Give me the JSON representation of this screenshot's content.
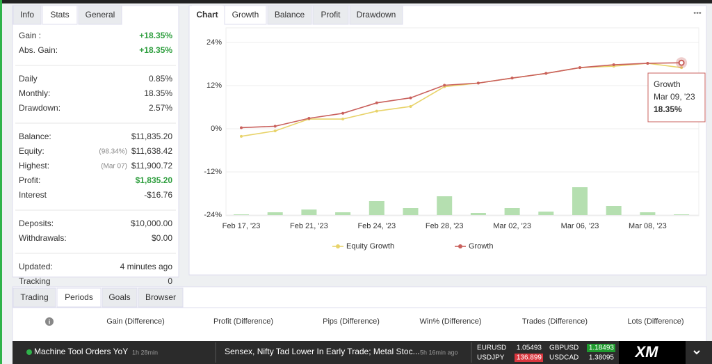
{
  "stats_panel": {
    "tabs": [
      "Info",
      "Stats",
      "General"
    ],
    "groups": [
      [
        {
          "label": "Gain :",
          "value": "+18.35%",
          "color": "#2e9e3e"
        },
        {
          "label": "Abs. Gain:",
          "value": "+18.35%",
          "color": "#2e9e3e"
        }
      ],
      [
        {
          "label": "Daily",
          "value": "0.85%"
        },
        {
          "label": "Monthly:",
          "value": "18.35%"
        },
        {
          "label": "Drawdown:",
          "value": "2.57%"
        }
      ],
      [
        {
          "label": "Balance:",
          "value": "$11,835.20"
        },
        {
          "label": "Equity:",
          "note": "(98.34%)",
          "value": "$11,638.42"
        },
        {
          "label": "Highest:",
          "note": "(Mar 07)",
          "value": "$11,900.72"
        },
        {
          "label": "Profit:",
          "value": "$1,835.20",
          "color": "#2e9e3e"
        },
        {
          "label": "Interest",
          "value": "-$16.76"
        }
      ],
      [
        {
          "label": "Deposits:",
          "value": "$10,000.00"
        },
        {
          "label": "Withdrawals:",
          "value": "$0.00"
        }
      ],
      [
        {
          "label": "Updated:",
          "value": "4 minutes ago"
        },
        {
          "label": "Tracking",
          "value": "0"
        }
      ]
    ]
  },
  "chart_panel": {
    "tabs": [
      "Chart",
      "Growth",
      "Balance",
      "Profit",
      "Drawdown"
    ],
    "menu": "•••"
  },
  "chart_data": {
    "type": "line",
    "categories": [
      "Feb 17, '23",
      null,
      "Feb 21, '23",
      null,
      "Feb 24, '23",
      null,
      "Feb 28, '23",
      null,
      "Mar 02, '23",
      null,
      "Mar 06, '23",
      null,
      "Mar 08, '23",
      null
    ],
    "series": [
      {
        "name": "Equity Growth",
        "color": "#e8d36a",
        "values": [
          -2.1,
          -0.6,
          2.7,
          2.7,
          4.9,
          6.2,
          11.7,
          12.7,
          14.1,
          15.4,
          17.0,
          17.4,
          18.2,
          17.0
        ]
      },
      {
        "name": "Growth",
        "color": "#c9605c",
        "values": [
          0.3,
          0.7,
          2.9,
          4.3,
          7.2,
          8.6,
          12.1,
          12.7,
          14.1,
          15.4,
          17.0,
          17.8,
          18.2,
          18.35
        ]
      }
    ],
    "bars": {
      "color": "#b5dfb0",
      "axis": "y2",
      "values": [
        1,
        4,
        8,
        4,
        20,
        10,
        27,
        3,
        10,
        5,
        40,
        13,
        4,
        1
      ]
    },
    "y2lim": [
      0,
      60
    ],
    "ylim": [
      -24,
      24
    ],
    "yticks": [
      {
        "value": -24,
        "label": "-24%"
      },
      {
        "value": -12,
        "label": "-12%"
      },
      {
        "value": 0,
        "label": "0%"
      },
      {
        "value": 12,
        "label": "12%"
      },
      {
        "value": 24,
        "label": "24%"
      }
    ],
    "grid": true,
    "legend": "bottom",
    "tooltip": {
      "date": "Mar 09, '23",
      "value": "18.35%"
    }
  },
  "periods_panel": {
    "tabs": [
      "Trading",
      "Periods",
      "Goals",
      "Browser"
    ],
    "icon": "i",
    "columns": [
      "Gain (Difference)",
      "Profit (Difference)",
      "Pips (Difference)",
      "Win% (Difference)",
      "Trades (Difference)",
      "Lots (Difference)"
    ]
  },
  "ticker": {
    "news": [
      {
        "title": "Machine Tool Orders YoY",
        "time": "1h 28min"
      },
      {
        "title": "Sensex, Nifty Tad Lower In Early Trade; Metal Stoc...",
        "time": "5h 16min ago"
      }
    ],
    "quotes": [
      {
        "symbol": "EURUSD",
        "price": "1.05493"
      },
      {
        "symbol": "GBPUSD",
        "price": "1.18493",
        "bg": "#1f9a2e"
      },
      {
        "symbol": "USDJPY",
        "price": "136.899",
        "bg": "#d9363e"
      },
      {
        "symbol": "USDCAD",
        "price": "1.38095"
      }
    ],
    "logo": "XM"
  }
}
